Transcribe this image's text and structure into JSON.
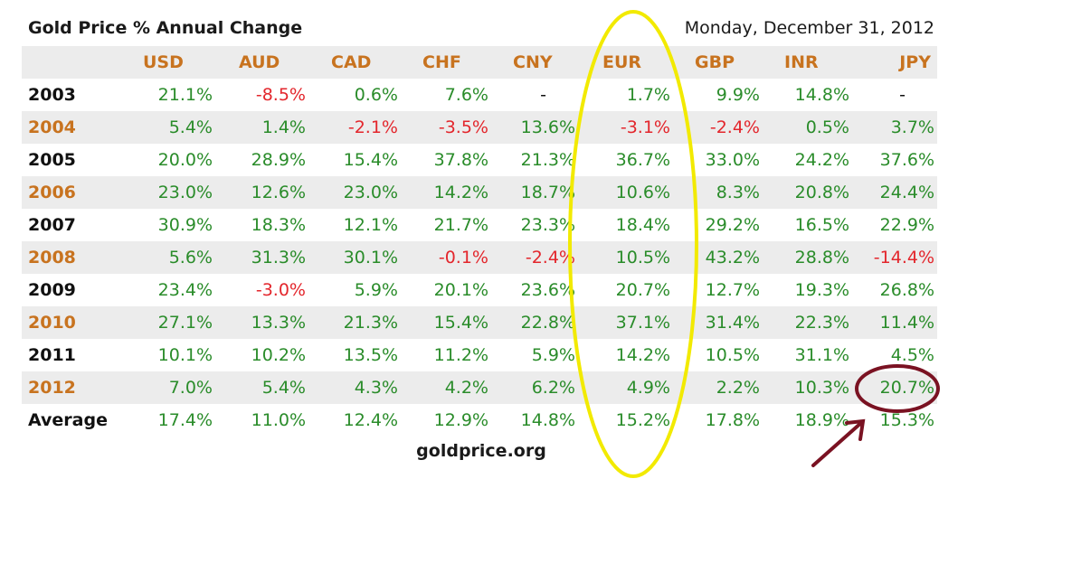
{
  "title": "Gold Price % Annual Change",
  "date": "Monday, December 31, 2012",
  "source": "goldprice.org",
  "colors": {
    "positive": "#2a8c2a",
    "negative": "#e3262c",
    "header": "#c8731f",
    "year_odd": "#111111",
    "year_even": "#c8731f",
    "highlight_ellipse": "#f2ea00",
    "highlight_circle": "#7a1222"
  },
  "chart_data": {
    "type": "table",
    "title": "Gold Price % Annual Change",
    "columns": [
      "USD",
      "AUD",
      "CAD",
      "CHF",
      "CNY",
      "EUR",
      "GBP",
      "INR",
      "JPY"
    ],
    "rows": [
      {
        "label": "2003",
        "values": [
          "21.1%",
          "-8.5%",
          "0.6%",
          "7.6%",
          "-",
          "1.7%",
          "9.9%",
          "14.8%",
          "-"
        ]
      },
      {
        "label": "2004",
        "values": [
          "5.4%",
          "1.4%",
          "-2.1%",
          "-3.5%",
          "13.6%",
          "-3.1%",
          "-2.4%",
          "0.5%",
          "3.7%"
        ]
      },
      {
        "label": "2005",
        "values": [
          "20.0%",
          "28.9%",
          "15.4%",
          "37.8%",
          "21.3%",
          "36.7%",
          "33.0%",
          "24.2%",
          "37.6%"
        ]
      },
      {
        "label": "2006",
        "values": [
          "23.0%",
          "12.6%",
          "23.0%",
          "14.2%",
          "18.7%",
          "10.6%",
          "8.3%",
          "20.8%",
          "24.4%"
        ]
      },
      {
        "label": "2007",
        "values": [
          "30.9%",
          "18.3%",
          "12.1%",
          "21.7%",
          "23.3%",
          "18.4%",
          "29.2%",
          "16.5%",
          "22.9%"
        ]
      },
      {
        "label": "2008",
        "values": [
          "5.6%",
          "31.3%",
          "30.1%",
          "-0.1%",
          "-2.4%",
          "10.5%",
          "43.2%",
          "28.8%",
          "-14.4%"
        ]
      },
      {
        "label": "2009",
        "values": [
          "23.4%",
          "-3.0%",
          "5.9%",
          "20.1%",
          "23.6%",
          "20.7%",
          "12.7%",
          "19.3%",
          "26.8%"
        ]
      },
      {
        "label": "2010",
        "values": [
          "27.1%",
          "13.3%",
          "21.3%",
          "15.4%",
          "22.8%",
          "37.1%",
          "31.4%",
          "22.3%",
          "11.4%"
        ]
      },
      {
        "label": "2011",
        "values": [
          "10.1%",
          "10.2%",
          "13.5%",
          "11.2%",
          "5.9%",
          "14.2%",
          "10.5%",
          "31.1%",
          "4.5%"
        ]
      },
      {
        "label": "2012",
        "values": [
          "7.0%",
          "5.4%",
          "4.3%",
          "4.2%",
          "6.2%",
          "4.9%",
          "2.2%",
          "10.3%",
          "20.7%"
        ]
      },
      {
        "label": "Average",
        "values": [
          "17.4%",
          "11.0%",
          "12.4%",
          "12.9%",
          "14.8%",
          "15.2%",
          "17.8%",
          "18.9%",
          "15.3%"
        ]
      }
    ],
    "annotations": [
      "EUR column circled in yellow",
      "JPY 2012 value circled with arrow"
    ]
  }
}
